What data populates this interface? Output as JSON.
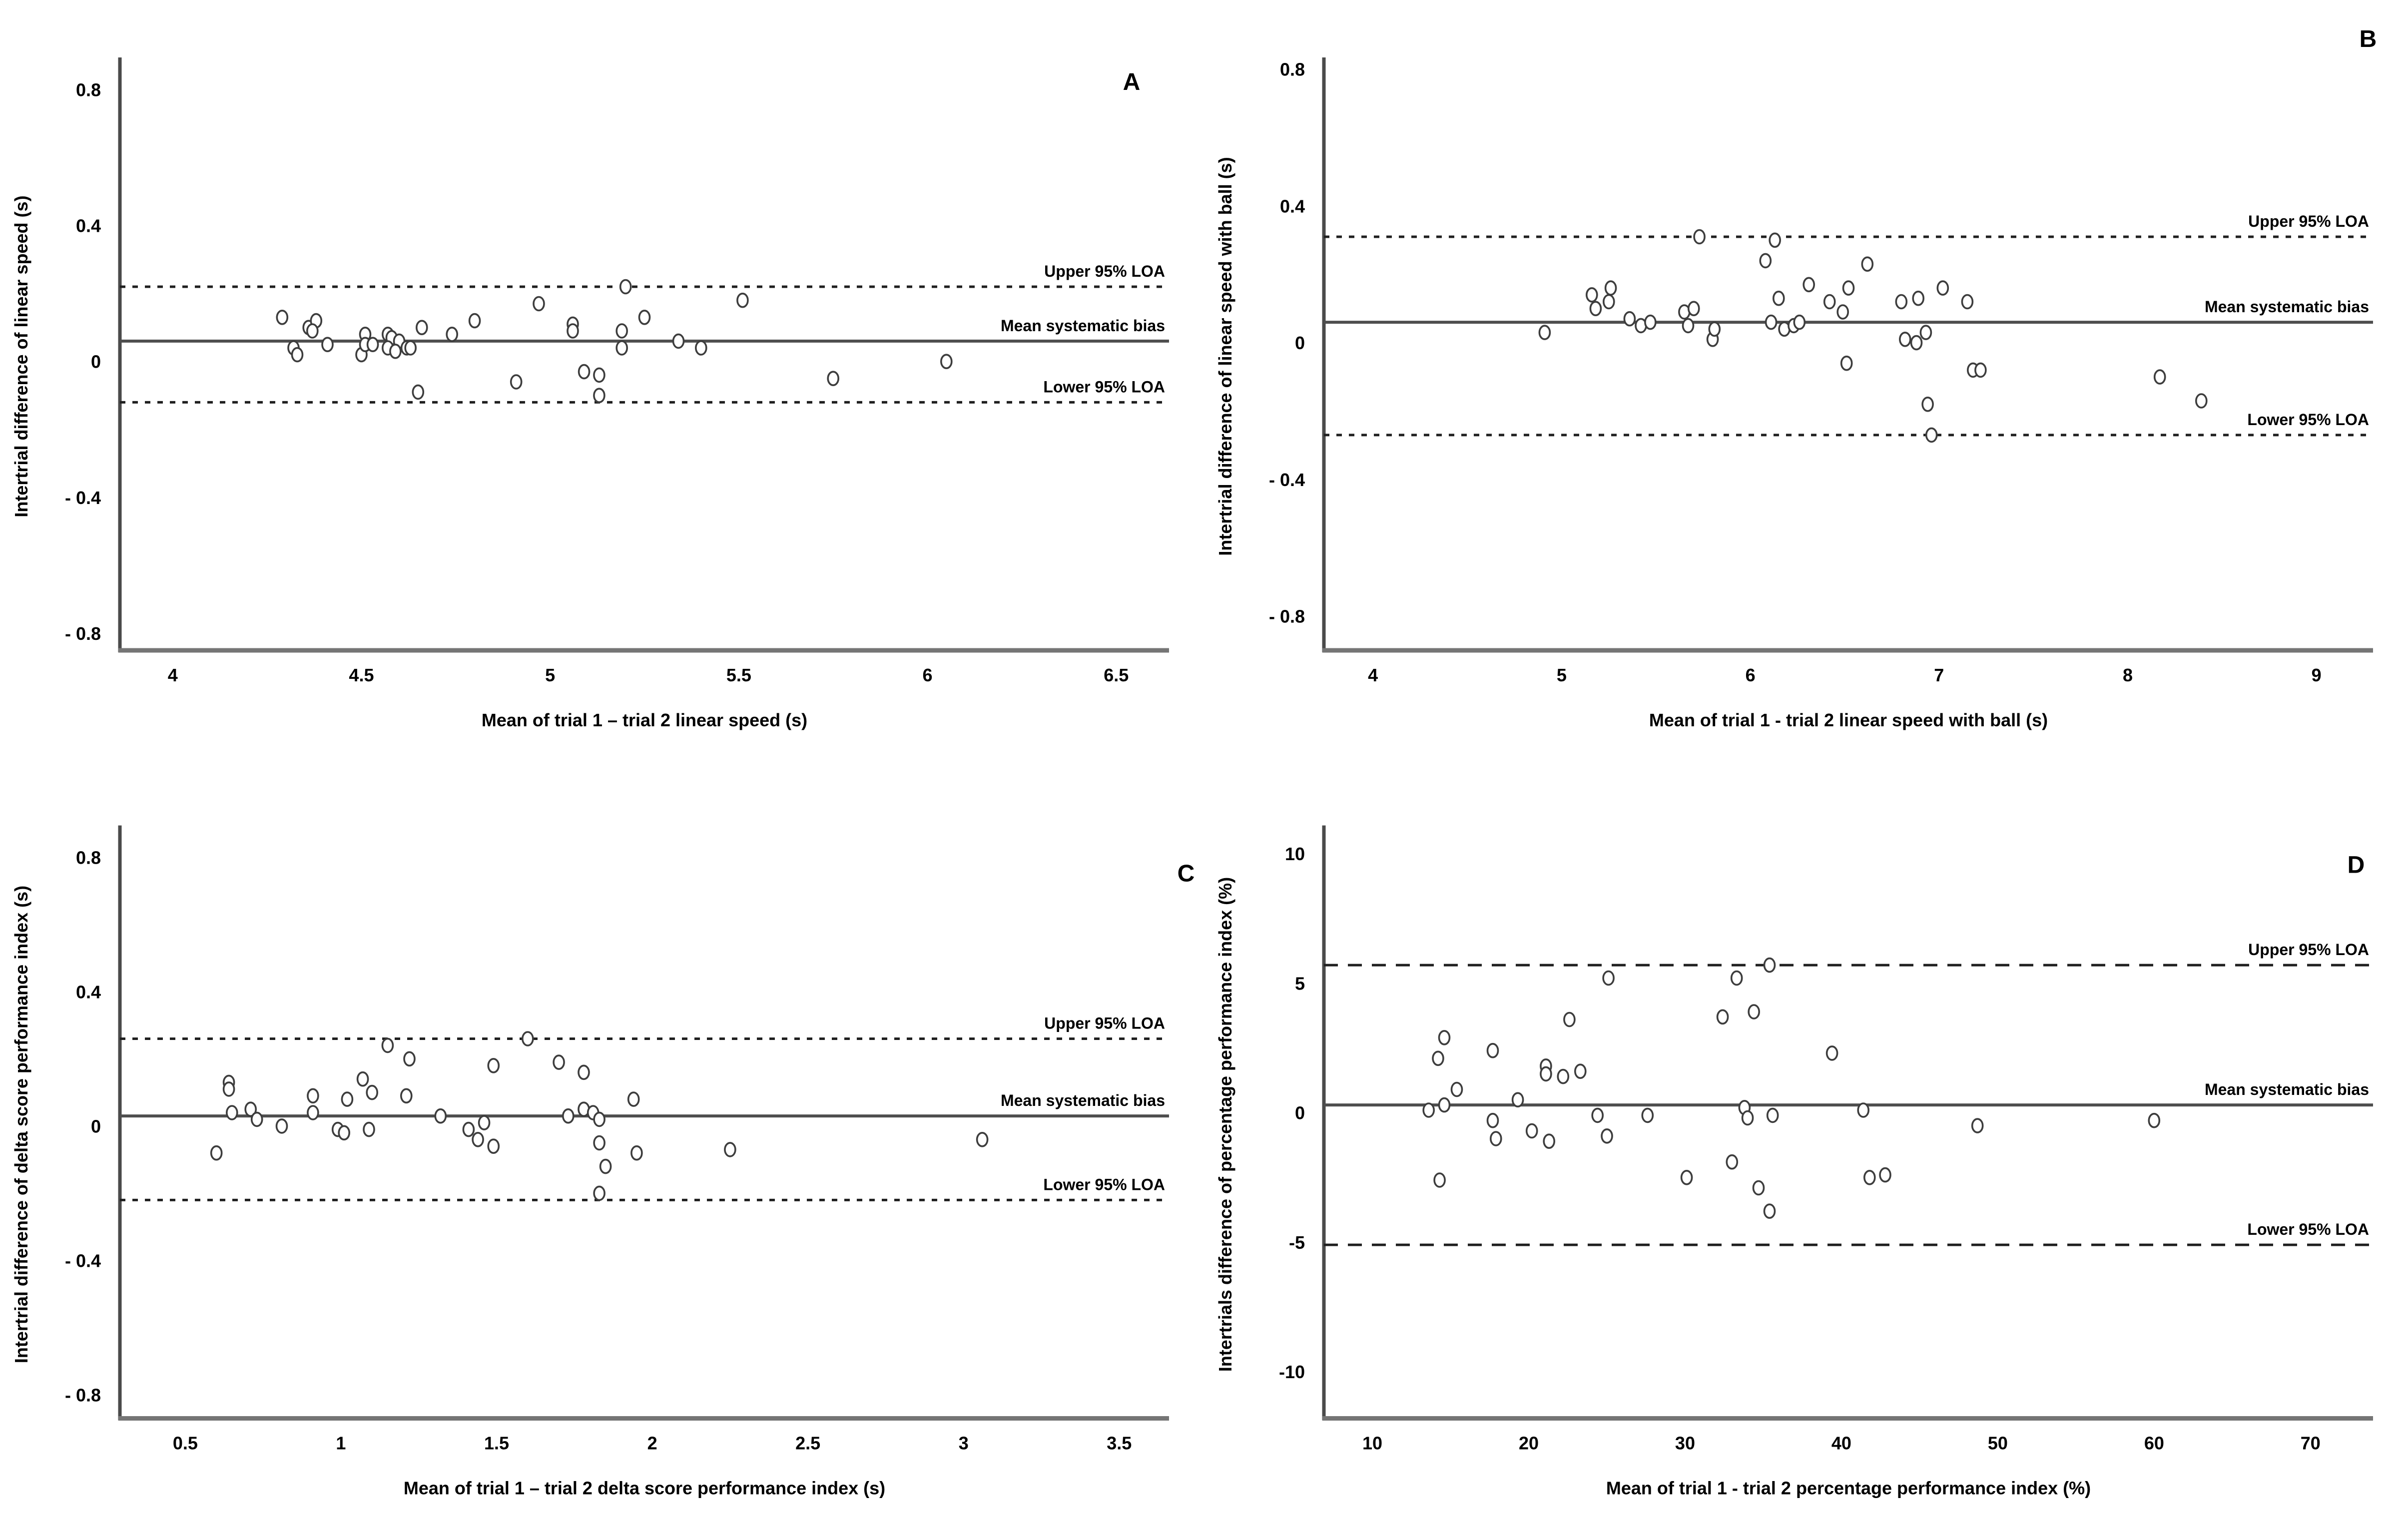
{
  "figure": {
    "background": "#ffffff",
    "marker": {
      "stroke": "#3d3d3d",
      "fill": "#ffffff"
    },
    "colors": {
      "bias_line": "#4e4e4e",
      "loa_line": "#1f1f1f",
      "left_spine": "#4a4a4a",
      "bottom_spine": "#757575",
      "text": "#000000"
    },
    "line_labels": {
      "upper": "Upper 95% LOA",
      "bias": "Mean systematic bias",
      "lower": "Lower 95% LOA"
    }
  },
  "chart_data": [
    {
      "type": "scatter",
      "panel_letter": "A",
      "xlabel": "Mean of trial 1 – trial 2 linear speed (s)",
      "ylabel": "Intertrial difference of linear speed (s)",
      "xlim": [
        3.86,
        6.64
      ],
      "ylim": [
        -0.85,
        0.88
      ],
      "xticks": {
        "values": [
          4,
          4.5,
          5,
          5.5,
          6,
          6.5
        ],
        "labels": [
          "4",
          "4.5",
          "5",
          "5.5",
          "6",
          "6.5"
        ]
      },
      "yticks": {
        "values": [
          0.8,
          0.4,
          0,
          -0.4,
          -0.8
        ],
        "labels": [
          "0.8",
          "0.4",
          "0",
          "- 0.4",
          "- 0.8"
        ]
      },
      "lines": {
        "bias": 0.06,
        "upper_loa": 0.22,
        "lower_loa": -0.12
      },
      "loa_style": "dotted",
      "letter_pos": [
        0.94,
        0.107
      ],
      "points": [
        [
          4.29,
          0.13
        ],
        [
          4.36,
          0.1
        ],
        [
          4.38,
          0.12
        ],
        [
          4.37,
          0.09
        ],
        [
          4.32,
          0.04
        ],
        [
          4.33,
          0.02
        ],
        [
          4.41,
          0.05
        ],
        [
          4.5,
          0.02
        ],
        [
          4.51,
          0.08
        ],
        [
          4.51,
          0.05
        ],
        [
          4.53,
          0.05
        ],
        [
          4.57,
          0.08
        ],
        [
          4.58,
          0.07
        ],
        [
          4.57,
          0.04
        ],
        [
          4.6,
          0.06
        ],
        [
          4.59,
          0.03
        ],
        [
          4.62,
          0.04
        ],
        [
          4.63,
          0.04
        ],
        [
          4.66,
          0.1
        ],
        [
          4.65,
          -0.09
        ],
        [
          4.74,
          0.08
        ],
        [
          4.8,
          0.12
        ],
        [
          4.91,
          -0.06
        ],
        [
          4.97,
          0.17
        ],
        [
          5.06,
          0.11
        ],
        [
          5.06,
          0.09
        ],
        [
          5.09,
          -0.03
        ],
        [
          5.13,
          -0.04
        ],
        [
          5.13,
          -0.1
        ],
        [
          5.19,
          0.09
        ],
        [
          5.19,
          0.04
        ],
        [
          5.2,
          0.22
        ],
        [
          5.25,
          0.13
        ],
        [
          5.34,
          0.06
        ],
        [
          5.4,
          0.04
        ],
        [
          5.51,
          0.18
        ],
        [
          5.75,
          -0.05
        ],
        [
          6.05,
          0.0
        ]
      ]
    },
    {
      "type": "scatter",
      "panel_letter": "B",
      "xlabel": "Mean of trial 1 - trial 2 linear speed with ball (s)",
      "ylabel": "Intertrial difference of linear speed with ball (s)",
      "xlim": [
        3.74,
        9.3
      ],
      "ylim": [
        -0.9,
        0.82
      ],
      "xticks": {
        "values": [
          4,
          5,
          6,
          7,
          8,
          9
        ],
        "labels": [
          "4",
          "5",
          "6",
          "7",
          "8",
          "9"
        ]
      },
      "yticks": {
        "values": [
          0.8,
          0.4,
          0,
          -0.4,
          -0.8
        ],
        "labels": [
          "0.8",
          "0.4",
          "0",
          "- 0.4",
          "- 0.8"
        ]
      },
      "lines": {
        "bias": 0.06,
        "upper_loa": 0.31,
        "lower_loa": -0.27
      },
      "loa_style": "dotted",
      "letter_pos": [
        0.967,
        0.051
      ],
      "points": [
        [
          4.91,
          0.03
        ],
        [
          5.16,
          0.14
        ],
        [
          5.18,
          0.1
        ],
        [
          5.25,
          0.12
        ],
        [
          5.26,
          0.16
        ],
        [
          5.36,
          0.07
        ],
        [
          5.42,
          0.05
        ],
        [
          5.47,
          0.06
        ],
        [
          5.65,
          0.09
        ],
        [
          5.67,
          0.05
        ],
        [
          5.7,
          0.1
        ],
        [
          5.73,
          0.31
        ],
        [
          5.8,
          0.01
        ],
        [
          5.81,
          0.04
        ],
        [
          6.08,
          0.24
        ],
        [
          6.11,
          0.06
        ],
        [
          6.13,
          0.3
        ],
        [
          6.15,
          0.13
        ],
        [
          6.18,
          0.04
        ],
        [
          6.23,
          0.05
        ],
        [
          6.26,
          0.06
        ],
        [
          6.31,
          0.17
        ],
        [
          6.42,
          0.12
        ],
        [
          6.49,
          0.09
        ],
        [
          6.51,
          -0.06
        ],
        [
          6.52,
          0.16
        ],
        [
          6.62,
          0.23
        ],
        [
          6.8,
          0.12
        ],
        [
          6.82,
          0.01
        ],
        [
          6.88,
          0.0
        ],
        [
          6.89,
          0.13
        ],
        [
          6.93,
          0.03
        ],
        [
          6.94,
          -0.18
        ],
        [
          6.96,
          -0.27
        ],
        [
          7.02,
          0.16
        ],
        [
          7.15,
          0.12
        ],
        [
          7.18,
          -0.08
        ],
        [
          7.22,
          -0.08
        ],
        [
          8.17,
          -0.1
        ],
        [
          8.39,
          -0.17
        ]
      ]
    },
    {
      "type": "scatter",
      "panel_letter": "C",
      "xlabel": "Mean of trial 1 – trial 2 delta score performance index (s)",
      "ylabel": "Intertrial difference of delta score performance index (s)",
      "xlim": [
        0.29,
        3.66
      ],
      "ylim": [
        -0.87,
        0.88
      ],
      "xticks": {
        "values": [
          0.5,
          1,
          1.5,
          2,
          2.5,
          3,
          3.5
        ],
        "labels": [
          "0.5",
          "1",
          "1.5",
          "2",
          "2.5",
          "3",
          "3.5"
        ]
      },
      "yticks": {
        "values": [
          0.8,
          0.4,
          0,
          -0.4,
          -0.8
        ],
        "labels": [
          "0.8",
          "0.4",
          "0",
          "- 0.4",
          "- 0.8"
        ]
      },
      "lines": {
        "bias": 0.03,
        "upper_loa": 0.26,
        "lower_loa": -0.22
      },
      "loa_style": "dotted",
      "letter_pos": [
        0.985,
        0.137
      ],
      "points": [
        [
          0.6,
          -0.08
        ],
        [
          0.64,
          0.13
        ],
        [
          0.64,
          0.11
        ],
        [
          0.65,
          0.04
        ],
        [
          0.71,
          0.05
        ],
        [
          0.73,
          0.02
        ],
        [
          0.81,
          0.0
        ],
        [
          0.91,
          0.09
        ],
        [
          0.91,
          0.04
        ],
        [
          0.99,
          -0.01
        ],
        [
          1.01,
          -0.02
        ],
        [
          1.02,
          0.08
        ],
        [
          1.07,
          0.14
        ],
        [
          1.09,
          -0.01
        ],
        [
          1.1,
          0.1
        ],
        [
          1.15,
          0.24
        ],
        [
          1.21,
          0.09
        ],
        [
          1.22,
          0.2
        ],
        [
          1.32,
          0.03
        ],
        [
          1.41,
          -0.01
        ],
        [
          1.44,
          -0.04
        ],
        [
          1.46,
          0.01
        ],
        [
          1.49,
          0.18
        ],
        [
          1.49,
          -0.06
        ],
        [
          1.6,
          0.26
        ],
        [
          1.7,
          0.19
        ],
        [
          1.73,
          0.03
        ],
        [
          1.78,
          0.16
        ],
        [
          1.78,
          0.05
        ],
        [
          1.81,
          0.04
        ],
        [
          1.83,
          0.02
        ],
        [
          1.83,
          -0.05
        ],
        [
          1.83,
          -0.2
        ],
        [
          1.85,
          -0.12
        ],
        [
          1.94,
          0.08
        ],
        [
          1.95,
          -0.08
        ],
        [
          2.25,
          -0.07
        ],
        [
          3.06,
          -0.04
        ]
      ]
    },
    {
      "type": "scatter",
      "panel_letter": "D",
      "xlabel": "Mean of trial 1 - trial 2 percentage performance index (%)",
      "ylabel": "Intertrials difference of percentage performance index (%)",
      "xlim": [
        6.9,
        74.0
      ],
      "ylim": [
        -11.8,
        10.9
      ],
      "xticks": {
        "values": [
          10,
          20,
          30,
          40,
          50,
          60,
          70
        ],
        "labels": [
          "10",
          "20",
          "30",
          "40",
          "50",
          "60",
          "70"
        ]
      },
      "yticks": {
        "values": [
          10,
          5,
          0,
          -5,
          -10
        ],
        "labels": [
          "10",
          "5",
          "0",
          "-5",
          "-10"
        ]
      },
      "lines": {
        "bias": 0.3,
        "upper_loa": 5.7,
        "lower_loa": -5.1
      },
      "loa_style": "dashed",
      "letter_pos": [
        0.957,
        0.126
      ],
      "points": [
        [
          13.6,
          0.1
        ],
        [
          14.2,
          2.1
        ],
        [
          14.3,
          -2.6
        ],
        [
          14.6,
          2.9
        ],
        [
          14.6,
          0.3
        ],
        [
          15.4,
          0.9
        ],
        [
          17.7,
          2.4
        ],
        [
          17.7,
          -0.3
        ],
        [
          17.9,
          -1.0
        ],
        [
          19.3,
          0.5
        ],
        [
          20.2,
          -0.7
        ],
        [
          21.1,
          1.8
        ],
        [
          21.1,
          1.5
        ],
        [
          21.3,
          -1.1
        ],
        [
          22.2,
          1.4
        ],
        [
          22.6,
          3.6
        ],
        [
          23.3,
          1.6
        ],
        [
          24.4,
          -0.1
        ],
        [
          25.0,
          -0.9
        ],
        [
          25.1,
          5.2
        ],
        [
          27.6,
          -0.1
        ],
        [
          30.1,
          -2.5
        ],
        [
          32.4,
          3.7
        ],
        [
          33.0,
          -1.9
        ],
        [
          33.3,
          5.2
        ],
        [
          33.8,
          0.2
        ],
        [
          34.0,
          -0.2
        ],
        [
          34.4,
          3.9
        ],
        [
          34.7,
          -2.9
        ],
        [
          35.4,
          5.7
        ],
        [
          35.4,
          -3.8
        ],
        [
          35.6,
          -0.1
        ],
        [
          39.4,
          2.3
        ],
        [
          41.4,
          0.1
        ],
        [
          41.8,
          -2.5
        ],
        [
          42.8,
          -2.4
        ],
        [
          48.7,
          -0.5
        ],
        [
          60.0,
          -0.3
        ]
      ]
    }
  ]
}
